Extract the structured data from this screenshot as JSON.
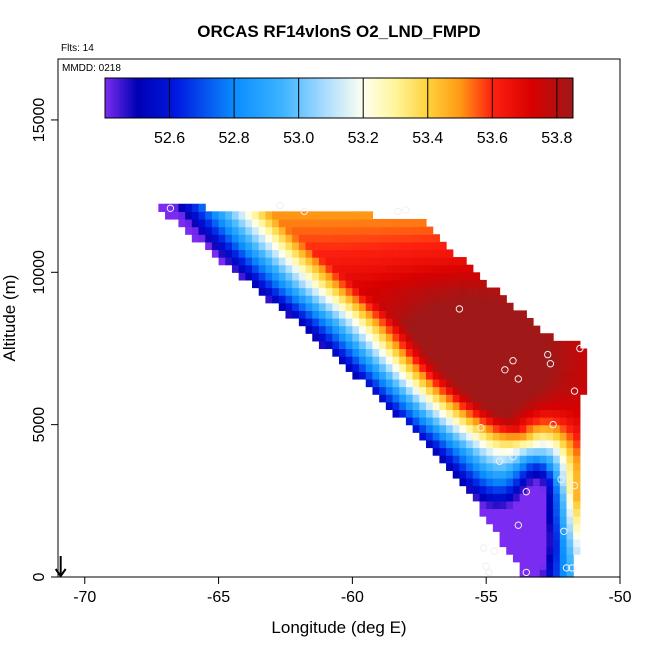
{
  "chart_data": {
    "type": "heatmap",
    "title": "ORCAS RF14vlonS O2_LND_FMPD",
    "subtitle_flights": "Flts: 14",
    "subtitle_date": "MMDD: 0218",
    "xlabel": "Longitude (deg E)",
    "ylabel": "Altitude (m)",
    "xlim": [
      -71,
      -50
    ],
    "ylim": [
      0,
      17000
    ],
    "x_ticks": [
      -70,
      -65,
      -60,
      -55,
      -50
    ],
    "x_tick_labels": [
      "-70",
      "-65",
      "-60",
      "-55",
      "-50"
    ],
    "y_ticks": [
      0,
      5000,
      10000,
      15000
    ],
    "y_tick_labels": [
      "0",
      "5000",
      "10000",
      "15000"
    ],
    "colorbar": {
      "min": 52.4,
      "max": 53.85,
      "ticks": [
        52.6,
        52.8,
        53.0,
        53.2,
        53.4,
        53.6,
        53.8
      ],
      "tick_labels": [
        "52.6",
        "52.8",
        "53.0",
        "53.2",
        "53.4",
        "53.6",
        "53.8"
      ],
      "stops": [
        [
          52.4,
          "#7a2df0"
        ],
        [
          52.5,
          "#0000b4"
        ],
        [
          52.62,
          "#0018e0"
        ],
        [
          52.8,
          "#0a8cff"
        ],
        [
          52.95,
          "#3cb4ff"
        ],
        [
          53.08,
          "#a8dcff"
        ],
        [
          53.2,
          "#fffff0"
        ],
        [
          53.3,
          "#fff59a"
        ],
        [
          53.4,
          "#ffd23c"
        ],
        [
          53.5,
          "#ff9a14"
        ],
        [
          53.6,
          "#ff2010"
        ],
        [
          53.72,
          "#d80000"
        ],
        [
          53.85,
          "#a01818"
        ]
      ]
    },
    "value_model": {
      "grid_lon_step": 0.25,
      "grid_alt_step": 250,
      "domain_left_edge_lon": [
        [
          -67.3,
          12200
        ],
        [
          -65.5,
          10800
        ],
        [
          -62.0,
          8300
        ],
        [
          -59.0,
          5900
        ],
        [
          -57.0,
          4200
        ],
        [
          -55.5,
          2600
        ],
        [
          -53.6,
          0
        ]
      ],
      "domain_top_edge_alt": [
        [
          -67.3,
          12200
        ],
        [
          -57.5,
          11800
        ],
        [
          -56.0,
          10500
        ],
        [
          -54.0,
          8900
        ],
        [
          -52.5,
          7800
        ],
        [
          -51.4,
          7600
        ]
      ],
      "domain_right_edge_lon": -51.6,
      "peak": {
        "lon": -55.5,
        "alt": 7000,
        "value": 53.78
      }
    },
    "flight_points": [
      {
        "lon": -66.8,
        "alt": 12100
      },
      {
        "lon": -62.7,
        "alt": 12200
      },
      {
        "lon": -61.8,
        "alt": 12000
      },
      {
        "lon": -58.3,
        "alt": 12000
      },
      {
        "lon": -58.0,
        "alt": 12050
      },
      {
        "lon": -56.0,
        "alt": 8800
      },
      {
        "lon": -54.0,
        "alt": 7100
      },
      {
        "lon": -54.3,
        "alt": 6800
      },
      {
        "lon": -53.8,
        "alt": 6500
      },
      {
        "lon": -52.7,
        "alt": 7300
      },
      {
        "lon": -52.6,
        "alt": 7000
      },
      {
        "lon": -51.7,
        "alt": 6100
      },
      {
        "lon": -51.5,
        "alt": 7500
      },
      {
        "lon": -55.2,
        "alt": 4900
      },
      {
        "lon": -54.5,
        "alt": 3800
      },
      {
        "lon": -54.0,
        "alt": 3950
      },
      {
        "lon": -52.5,
        "alt": 5000
      },
      {
        "lon": -52.2,
        "alt": 3200
      },
      {
        "lon": -51.7,
        "alt": 3000
      },
      {
        "lon": -53.5,
        "alt": 2800
      },
      {
        "lon": -53.8,
        "alt": 1700
      },
      {
        "lon": -52.1,
        "alt": 1500
      },
      {
        "lon": -55.1,
        "alt": 950
      },
      {
        "lon": -54.7,
        "alt": 850
      },
      {
        "lon": -55.0,
        "alt": 350
      },
      {
        "lon": -54.9,
        "alt": 150
      },
      {
        "lon": -53.5,
        "alt": 150
      },
      {
        "lon": -52.0,
        "alt": 300
      },
      {
        "lon": -51.8,
        "alt": 300
      }
    ],
    "marker_arrow_lon": -70.9
  }
}
